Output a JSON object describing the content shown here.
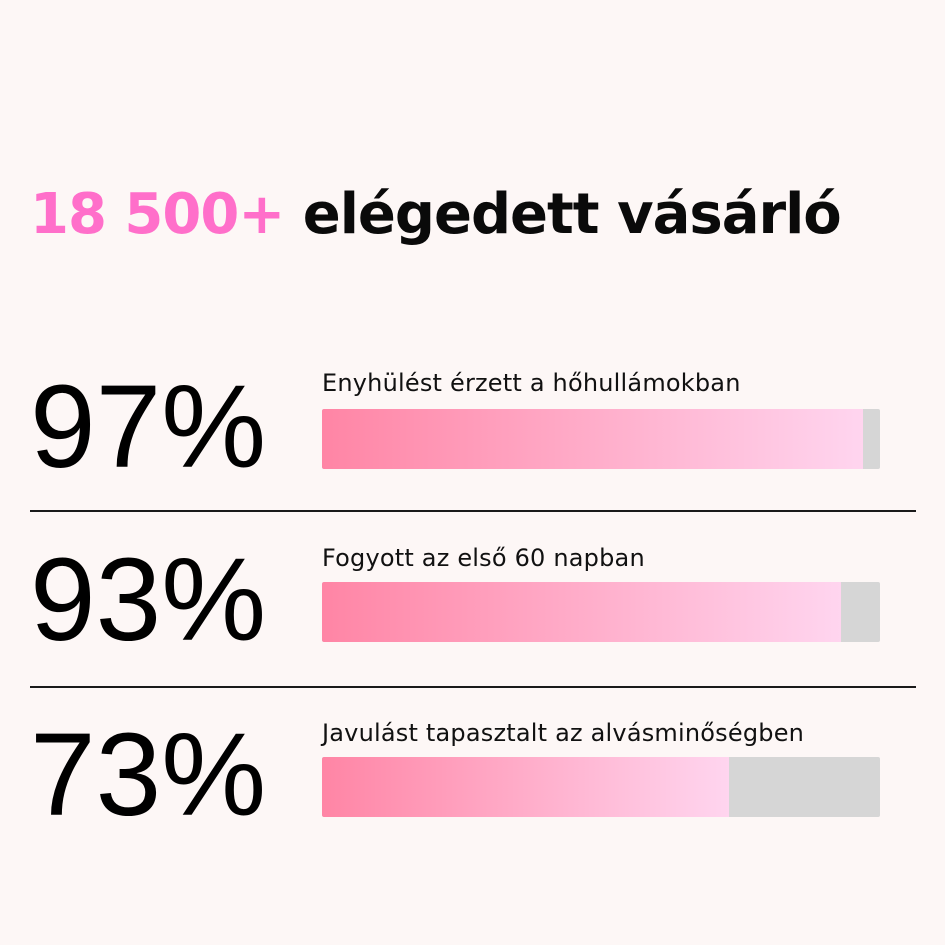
{
  "headline": {
    "highlight": "18 500+",
    "rest": " elégedett vásárló",
    "highlight_color": "#ff6fca"
  },
  "stats": [
    {
      "percent_label": "97%",
      "value": 97,
      "label": "Enyhülést érzett a hőhullámokban"
    },
    {
      "percent_label": "93%",
      "value": 93,
      "label": "Fogyott az első 60 napban"
    },
    {
      "percent_label": "73%",
      "value": 73,
      "label": "Javulást tapasztalt az alvásminőségben"
    }
  ],
  "colors": {
    "background": "#fdf7f6",
    "bar_track": "#d6d6d6",
    "bar_start": "#ff85a5",
    "bar_end": "#ffd5ef"
  }
}
